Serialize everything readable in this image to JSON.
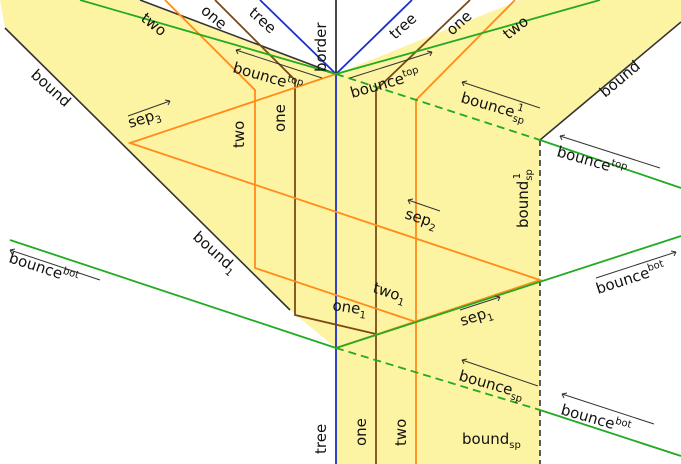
{
  "colors": {
    "region_fill": "#fdf4a3",
    "orange": "#ff8c1a",
    "brown": "#7a4a15",
    "blue": "#1a2fcc",
    "green": "#22aa22",
    "dark": "#333333",
    "background": "#ffffff"
  },
  "labels": {
    "border": "border",
    "two_top_left": "two",
    "one_top_left": "one",
    "tree_top_left": "tree",
    "tree_top_right": "tree",
    "one_top_right": "one",
    "two_top_right": "two",
    "bound_left": "bound",
    "bound_right": "bound",
    "bounce_top_left": "bounce",
    "bounce_top_left_sup": "top",
    "bounce_top_mid": "bounce",
    "bounce_top_mid_sup": "top",
    "bounce_sp1": "bounce",
    "bounce_sp1_sub": "sp",
    "bounce_sp1_sup": "1",
    "bounce_top_right": "bounce",
    "bounce_top_right_sup": "top",
    "sep3": "sep",
    "sep3_sub": "3",
    "two_mid": "two",
    "one_mid": "one",
    "bound_sp1": "bound",
    "bound_sp1_sub": "sp",
    "bound_sp1_sup": "1",
    "sep2": "sep",
    "sep2_sub": "2",
    "bound1": "bound",
    "bound1_sub": "1",
    "bounce_bot_left": "bounce",
    "bounce_bot_left_sup": "bot",
    "two1": "two",
    "two1_sub": "1",
    "bounce_bot_right": "bounce",
    "bounce_bot_right_sup": "bot",
    "one1": "one",
    "one1_sub": "1",
    "sep1": "sep",
    "sep1_sub": "1",
    "bounce_sp": "bounce",
    "bounce_sp_sub": "sp",
    "bounce_bot_far_right": "bounce",
    "bounce_bot_far_right_sup": "bot",
    "tree_bottom": "tree",
    "one_bottom": "one",
    "two_bottom": "two",
    "bound_sp": "bound",
    "bound_sp_sub": "sp"
  }
}
